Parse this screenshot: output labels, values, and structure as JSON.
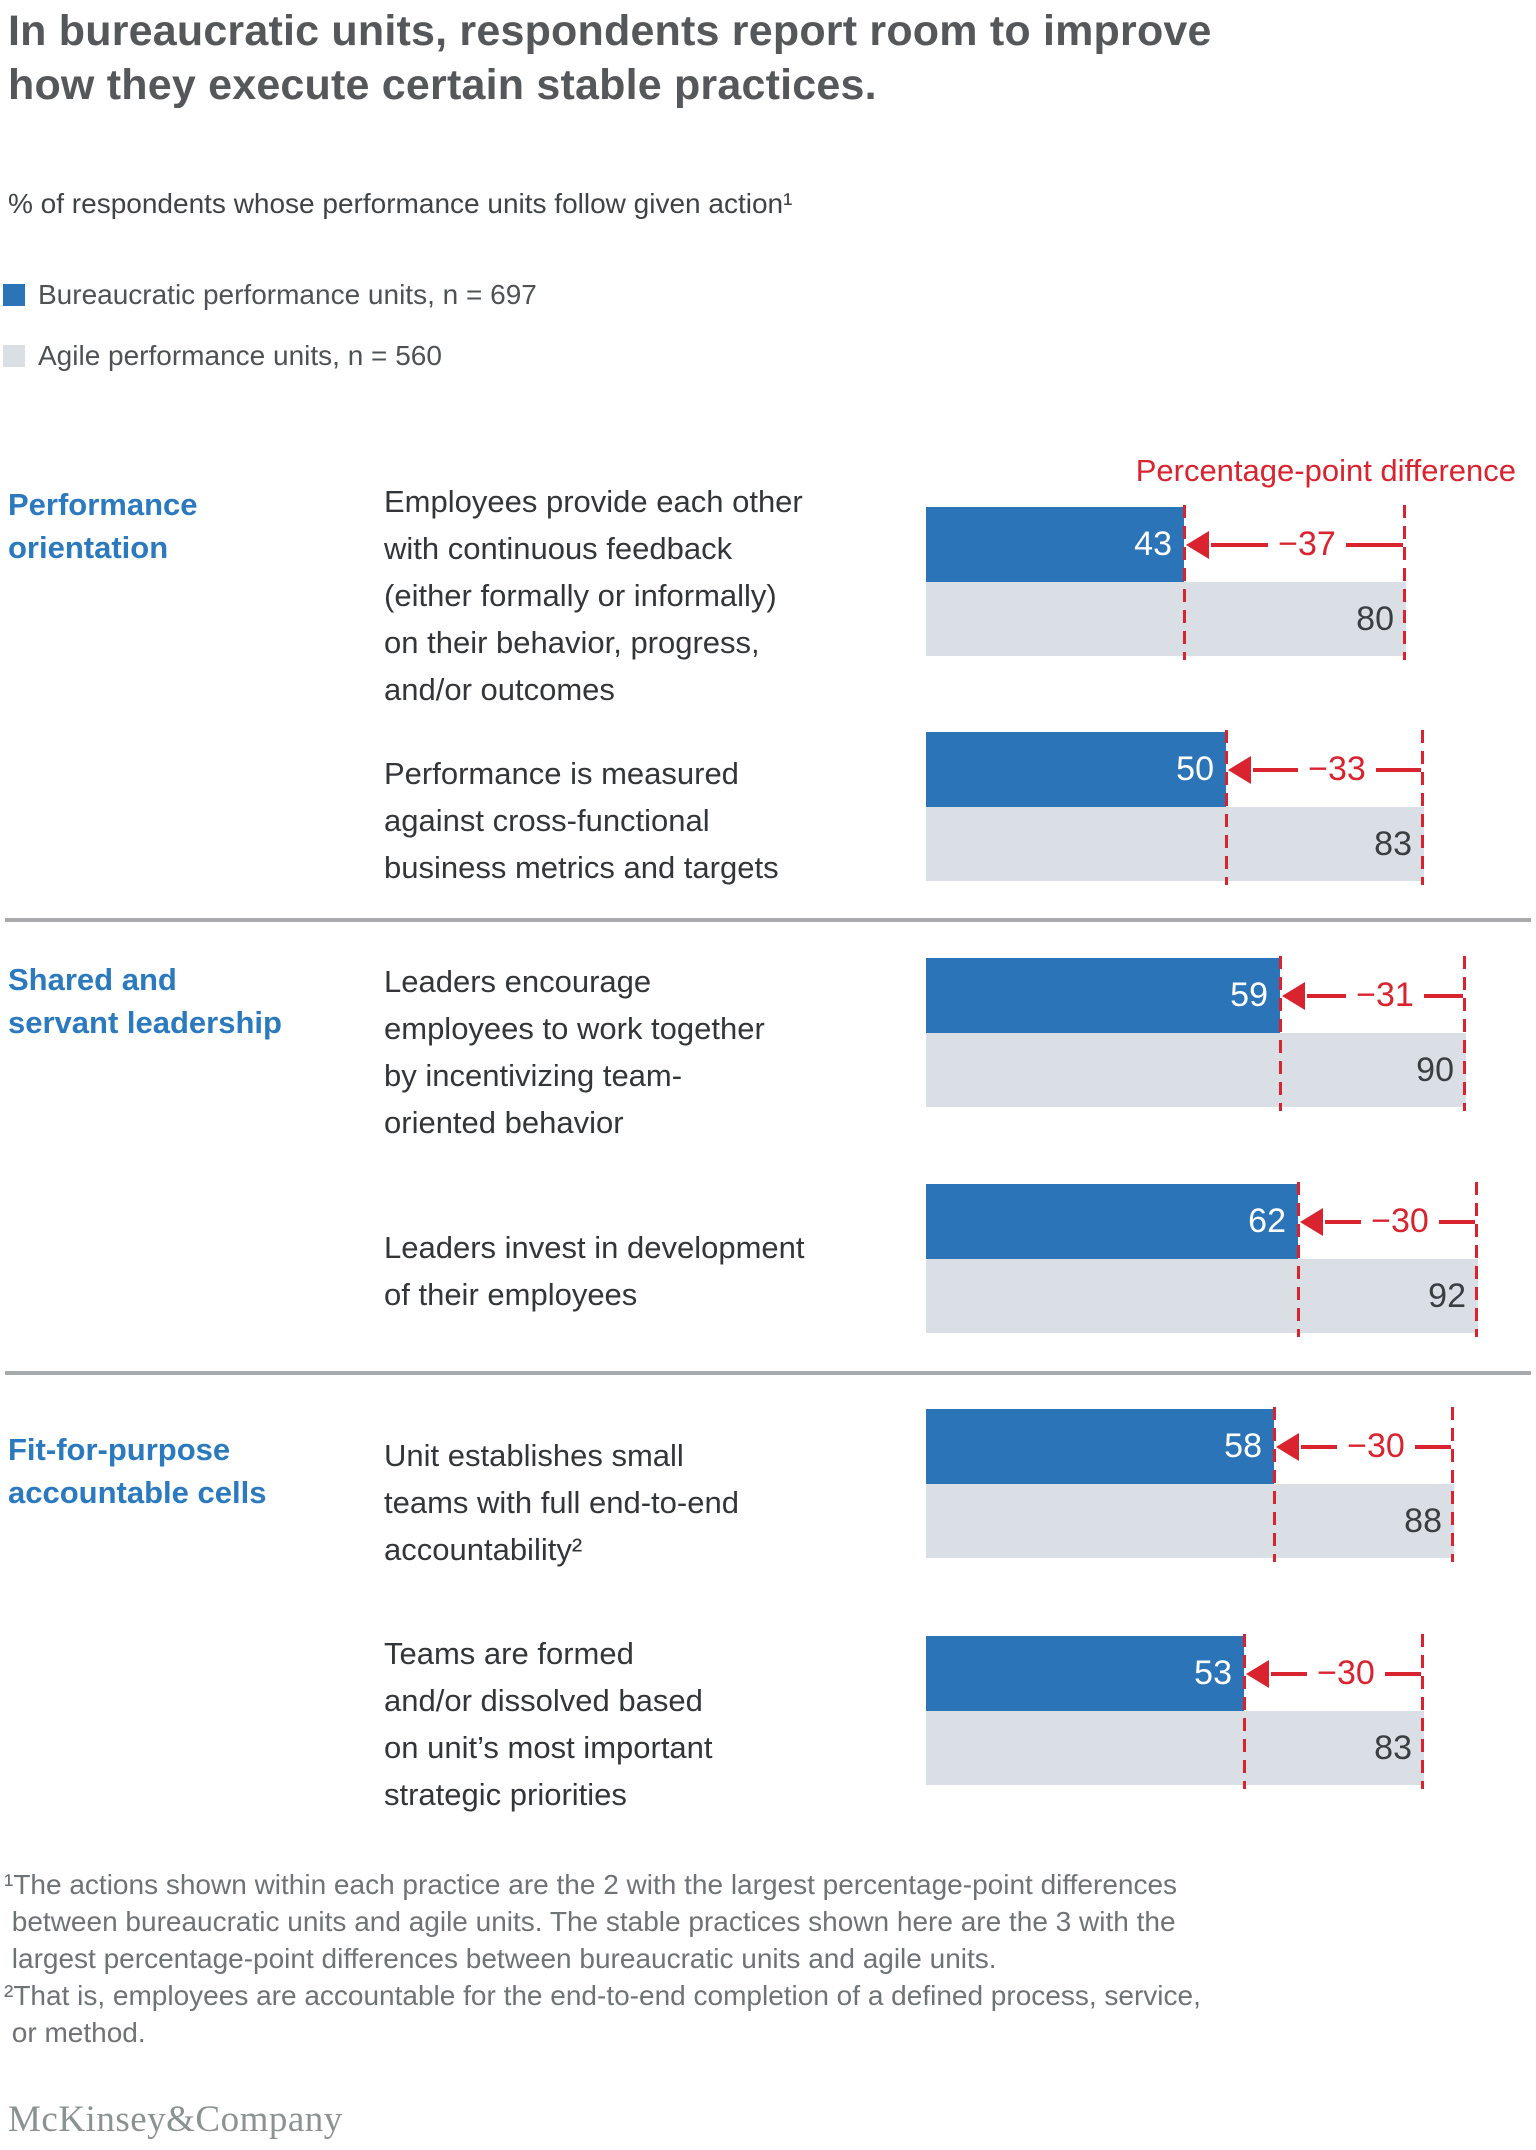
{
  "title": "In bureaucratic units, respondents report room to improve\nhow they execute certain stable practices.",
  "subtitle": "% of respondents whose performance units follow given action¹",
  "legend": {
    "bureaucratic": {
      "label": "Bureaucratic performance units, n = 697",
      "color": "#2B74B8"
    },
    "agile": {
      "label": "Agile performance units, n = 560",
      "color": "#D9DFE4"
    }
  },
  "diff_header": "Percentage-point difference",
  "colors": {
    "bar-blue": "#2B74B8",
    "bar-gray": "#D9DFE4",
    "accent-red": "#D9232F"
  },
  "sections": [
    {
      "label": "Performance\norientation",
      "rows": [
        {
          "text": "Employees provide each other\nwith continuous feedback\n(either formally or informally)\non their behavior, progress,\nand/or outcomes",
          "bureaucratic": 43,
          "agile": 80,
          "diff_label": "−37"
        },
        {
          "text": "Performance is measured\nagainst cross-functional\nbusiness metrics and targets",
          "bureaucratic": 50,
          "agile": 83,
          "diff_label": "−33"
        }
      ]
    },
    {
      "label": "Shared and\nservant leadership",
      "rows": [
        {
          "text": "Leaders encourage\nemployees to work together\nby incentivizing team-\noriented behavior",
          "bureaucratic": 59,
          "agile": 90,
          "diff_label": "−31"
        },
        {
          "text": "Leaders invest in development\nof their employees",
          "bureaucratic": 62,
          "agile": 92,
          "diff_label": "−30"
        }
      ]
    },
    {
      "label": "Fit-for-purpose\naccountable cells",
      "rows": [
        {
          "text": "Unit establishes small\nteams with full end-to-end\naccountability²",
          "bureaucratic": 58,
          "agile": 88,
          "diff_label": "−30"
        },
        {
          "text": "Teams are formed\nand/or dissolved based\non unit’s most important\nstrategic priorities",
          "bureaucratic": 53,
          "agile": 83,
          "diff_label": "−30"
        }
      ]
    }
  ],
  "chart_data": {
    "type": "bar",
    "title": "% of respondents whose performance units follow given action",
    "orientation": "horizontal",
    "xlim": [
      0,
      100
    ],
    "grid": false,
    "legend_position": "top-left",
    "groups": [
      "Performance orientation",
      "Shared and servant leadership",
      "Fit-for-purpose accountable cells"
    ],
    "categories": [
      "Employees provide each other with continuous feedback (either formally or informally) on their behavior, progress, and/or outcomes",
      "Performance is measured against cross-functional business metrics and targets",
      "Leaders encourage employees to work together by incentivizing team-oriented behavior",
      "Leaders invest in development of their employees",
      "Unit establishes small teams with full end-to-end accountability",
      "Teams are formed and/or dissolved based on unit’s most important strategic priorities"
    ],
    "series": [
      {
        "name": "Bureaucratic performance units, n = 697",
        "color": "#2B74B8",
        "values": [
          43,
          50,
          59,
          62,
          58,
          53
        ]
      },
      {
        "name": "Agile performance units, n = 560",
        "color": "#D9DFE4",
        "values": [
          80,
          83,
          90,
          92,
          88,
          83
        ]
      }
    ],
    "percentage_point_differences": [
      -37,
      -33,
      -31,
      -30,
      -30,
      -30
    ],
    "annotation": "Percentage-point difference"
  },
  "footnotes": [
    "¹The actions shown within each practice are the 2 with the largest percentage-point differences\n between bureaucratic units and agile units. The stable practices shown here are the 3 with the\n largest percentage-point differences between bureaucratic units and agile units.",
    "²That is, employees are accountable for the end-to-end completion of a defined process, service,\n or method."
  ],
  "logo": "McKinsey&Company"
}
